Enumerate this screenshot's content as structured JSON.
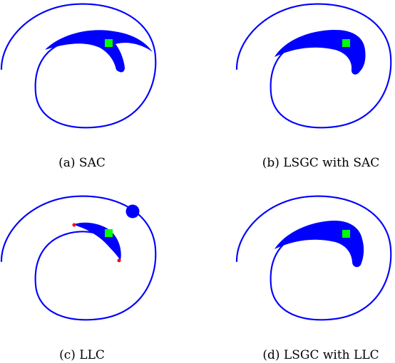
{
  "captions": {
    "a": "(a)  SAC",
    "b": "(b)  LSGC with SAC",
    "c": "(c)  LLC",
    "d": "(d)  LSGC with LLC"
  },
  "colors": {
    "curve": "#0000ff",
    "seed": "#00ff00",
    "endpoint": "#ff0000"
  }
}
